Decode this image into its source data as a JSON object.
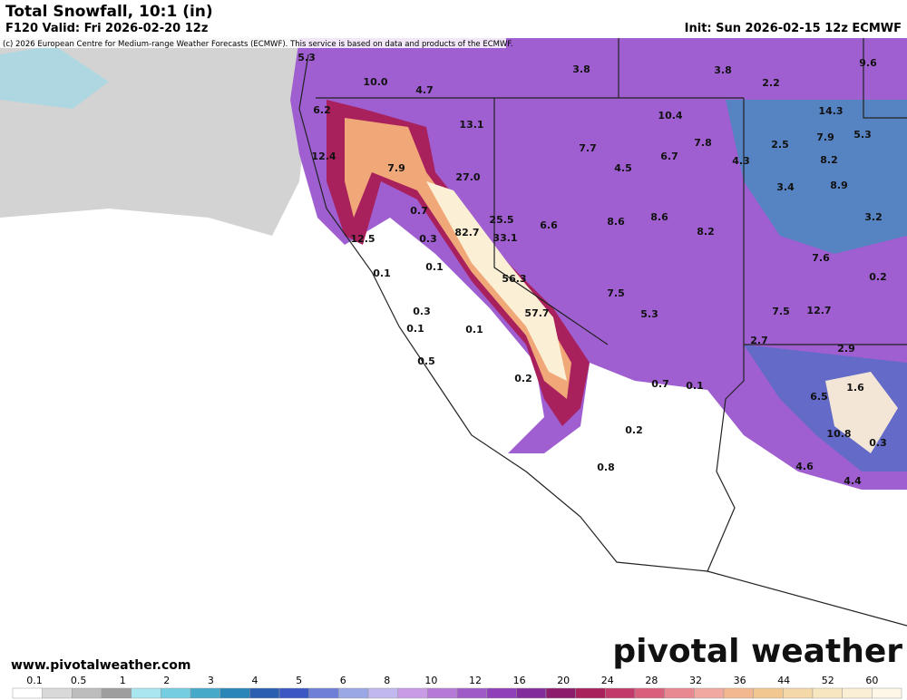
{
  "header": {
    "title": "Total Snowfall, 10:1 (in)",
    "valid": "F120 Valid: Fri 2026-02-20 12z",
    "init": "Init: Sun 2026-02-15 12z ECMWF",
    "credit": "(c) 2026 European Centre for Medium-range Weather Forecasts (ECMWF). This service is based on data and products of the ECMWF."
  },
  "map": {
    "labels": [
      "5.3",
      "10.0",
      "4.7",
      "3.8",
      "3.8",
      "2.2",
      "9.6",
      "6.2",
      "13.1",
      "10.4",
      "14.3",
      "5.3",
      "7.7",
      "7.8",
      "2.5",
      "7.9",
      "12.4",
      "7.9",
      "4.5",
      "6.7",
      "4.3",
      "8.2",
      "27.0",
      "3.4",
      "8.9",
      "0.7",
      "25.5",
      "6.6",
      "8.6",
      "8.6",
      "3.2",
      "82.7",
      "33.1",
      "8.2",
      "12.5",
      "0.3",
      "7.6",
      "0.1",
      "0.1",
      "56.3",
      "0.2",
      "7.5",
      "0.3",
      "57.7",
      "5.3",
      "7.5",
      "12.7",
      "0.1",
      "0.1",
      "2.7",
      "2.9",
      "0.5",
      "0.2",
      "0.7",
      "0.1",
      "1.6",
      "6.5",
      "0.2",
      "10.8",
      "0.3",
      "0.8",
      "4.6",
      "4.4"
    ]
  },
  "footer": {
    "website": "www.pivotalweather.com",
    "brand": "pivotal weather"
  },
  "legend": {
    "labels": [
      "0.1",
      "0.5",
      "1",
      "2",
      "3",
      "4",
      "5",
      "6",
      "8",
      "10",
      "12",
      "16",
      "20",
      "24",
      "28",
      "32",
      "36",
      "44",
      "52",
      "60"
    ],
    "colors": [
      "#ffffff",
      "#d9d9d9",
      "#bdbdbd",
      "#9e9e9e",
      "#a8e6f0",
      "#74cde0",
      "#45a9c9",
      "#2b86b8",
      "#2a5fb0",
      "#3b57c4",
      "#6f7fd8",
      "#9aa8e6",
      "#c0b8ee",
      "#c99be6",
      "#b57ad8",
      "#a05ac8",
      "#9040b8",
      "#822c9c",
      "#8c1c6c",
      "#a8205c",
      "#c23a6a",
      "#d8607c",
      "#e88890",
      "#f0a8a0",
      "#f4b890",
      "#f2c890",
      "#f5d8a8",
      "#f8e6c0",
      "#fbf0d6",
      "#fdf7e8"
    ]
  }
}
